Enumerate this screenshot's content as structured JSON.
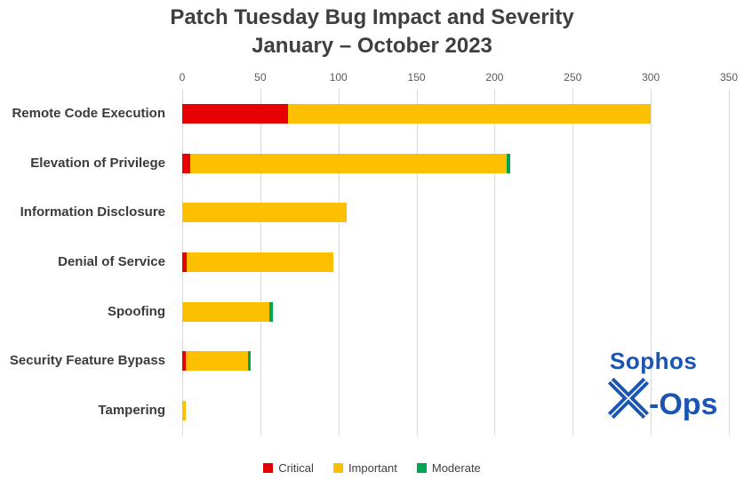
{
  "title": {
    "line1": "Patch Tuesday Bug Impact and Severity",
    "line2": "January – October 2023"
  },
  "chart_data": {
    "type": "bar",
    "orientation": "horizontal",
    "stacked": true,
    "title": "Patch Tuesday Bug Impact and Severity January – October 2023",
    "categories": [
      "Remote Code Execution",
      "Elevation of Privilege",
      "Information Disclosure",
      "Denial of Service",
      "Spoofing",
      "Security Feature Bypass",
      "Tampering"
    ],
    "series": [
      {
        "name": "Critical",
        "color": "#e60000",
        "values": [
          68,
          5,
          0,
          3,
          0,
          2,
          0
        ]
      },
      {
        "name": "Important",
        "color": "#fcc000",
        "values": [
          232,
          203,
          105,
          94,
          56,
          40,
          2
        ]
      },
      {
        "name": "Moderate",
        "color": "#00a650",
        "values": [
          0,
          2,
          0,
          0,
          2,
          2,
          0
        ]
      }
    ],
    "xlim": [
      0,
      350
    ],
    "xticks": [
      0,
      50,
      100,
      150,
      200,
      250,
      300,
      350
    ],
    "xlabel": "",
    "ylabel": "",
    "grid": "vertical",
    "legend_position": "bottom"
  },
  "legend": {
    "items": [
      "Critical",
      "Important",
      "Moderate"
    ]
  },
  "logo": {
    "brand": "Sophos",
    "x_letter": "X",
    "ops_suffix": "-Ops",
    "color": "#1a55b4"
  }
}
